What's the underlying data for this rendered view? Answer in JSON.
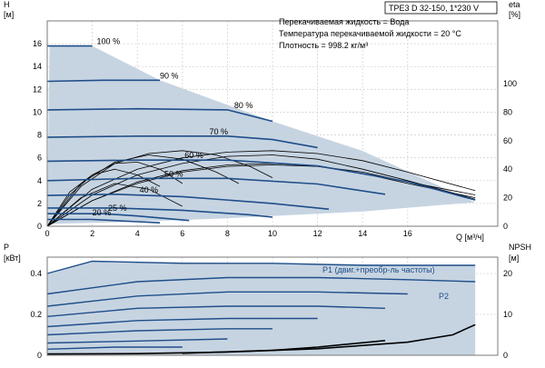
{
  "header": {
    "title": "TPE3 D 32-150, 1*230 V",
    "notes": [
      "Перекачиваемая жидкость = Вода",
      "Температура перекачиваемой жидкости = 20 °C",
      "Плотность = 998.2 кг/м³"
    ]
  },
  "colors": {
    "curve": "#1f4e89",
    "area_fill": "#c6d4e2",
    "eff": "#000000",
    "axis": "#7a7a7a",
    "grid": "#d4d4d4"
  },
  "chart_data": [
    {
      "type": "line",
      "id": "qh",
      "ylabel_lines": [
        "H",
        "[м]"
      ],
      "y2label_lines": [
        "eta",
        "[%]"
      ],
      "xlabel": "Q [м³/ч]",
      "xlim": [
        0,
        20
      ],
      "ylim": [
        0,
        18
      ],
      "xticks": [
        0,
        2,
        4,
        6,
        8,
        10,
        12,
        14,
        16
      ],
      "yticks": [
        0,
        2,
        4,
        6,
        8,
        10,
        12,
        14,
        16
      ],
      "y2lim": [
        0,
        144
      ],
      "y2ticks": [
        0,
        20,
        40,
        60,
        80,
        100
      ],
      "grid": true,
      "speed_labels": [
        {
          "text": "100 %",
          "x": 2.2,
          "y": 15.8
        },
        {
          "text": "90 %",
          "x": 5.0,
          "y": 12.8
        },
        {
          "text": "80 %",
          "x": 8.3,
          "y": 10.2
        },
        {
          "text": "70 %",
          "x": 7.2,
          "y": 7.9
        },
        {
          "text": "60 %",
          "x": 6.1,
          "y": 5.8
        },
        {
          "text": "50 %",
          "x": 5.2,
          "y": 4.2
        },
        {
          "text": "40 %",
          "x": 4.1,
          "y": 2.8
        },
        {
          "text": "25 %",
          "x": 2.7,
          "y": 1.2
        },
        {
          "text": "20 %",
          "x": 2.0,
          "y": 0.8
        }
      ],
      "envelope": [
        [
          0.1,
          15.8
        ],
        [
          2.0,
          15.8
        ],
        [
          5.0,
          12.8
        ],
        [
          10.0,
          9.2
        ],
        [
          14.0,
          6.6
        ],
        [
          19.0,
          2.1
        ],
        [
          14.0,
          1.3
        ],
        [
          8.0,
          0.7
        ],
        [
          4.0,
          0.4
        ],
        [
          0,
          0.2
        ]
      ],
      "series": [
        {
          "points": [
            [
              0,
              15.8
            ],
            [
              2.0,
              15.8
            ]
          ]
        },
        {
          "points": [
            [
              0,
              12.7
            ],
            [
              2.5,
              12.8
            ],
            [
              5.0,
              12.8
            ]
          ]
        },
        {
          "points": [
            [
              0,
              10.2
            ],
            [
              4.0,
              10.3
            ],
            [
              8.0,
              10.2
            ],
            [
              10.0,
              9.2
            ]
          ]
        },
        {
          "points": [
            [
              0,
              7.8
            ],
            [
              4.0,
              7.9
            ],
            [
              8.0,
              7.9
            ],
            [
              10.0,
              7.6
            ],
            [
              12.0,
              6.9
            ]
          ]
        },
        {
          "points": [
            [
              0,
              5.7
            ],
            [
              4.0,
              5.8
            ],
            [
              8.0,
              5.8
            ],
            [
              12.0,
              5.3
            ],
            [
              14.0,
              4.6
            ],
            [
              16.0,
              3.9
            ],
            [
              19.0,
              2.3
            ]
          ]
        },
        {
          "points": [
            [
              0,
              4.0
            ],
            [
              4.0,
              4.2
            ],
            [
              8.0,
              4.2
            ],
            [
              12.0,
              3.7
            ],
            [
              15.0,
              2.8
            ]
          ]
        },
        {
          "points": [
            [
              0,
              2.7
            ],
            [
              3.0,
              2.8
            ],
            [
              6.0,
              2.6
            ],
            [
              10.0,
              2.0
            ],
            [
              12.5,
              1.5
            ]
          ]
        },
        {
          "points": [
            [
              0,
              1.6
            ],
            [
              3.0,
              1.6
            ],
            [
              6.0,
              1.4
            ],
            [
              9.0,
              1.0
            ],
            [
              10.0,
              0.8
            ]
          ]
        },
        {
          "points": [
            [
              0,
              1.1
            ],
            [
              2.5,
              1.1
            ],
            [
              4.0,
              0.9
            ],
            [
              6.3,
              0.5
            ]
          ]
        },
        {
          "points": [
            [
              0,
              0.6
            ],
            [
              2.0,
              0.6
            ],
            [
              4.0,
              0.4
            ],
            [
              5.0,
              0.3
            ]
          ]
        }
      ],
      "efficiency_series": [
        {
          "points": [
            [
              0,
              0
            ],
            [
              2.0,
              18
            ],
            [
              4.0,
              30
            ],
            [
              6.0,
              38
            ],
            [
              8.0,
              42
            ],
            [
              10.0,
              43
            ],
            [
              12.0,
              42
            ],
            [
              14.0,
              38
            ],
            [
              16.0,
              31
            ],
            [
              19.0,
              22
            ]
          ]
        },
        {
          "points": [
            [
              0,
              0
            ],
            [
              2.0,
              18
            ],
            [
              4.0,
              31
            ],
            [
              6.0,
              39
            ],
            [
              8.0,
              43
            ],
            [
              10.0,
              44
            ],
            [
              12.0,
              42
            ],
            [
              14.0,
              37
            ],
            [
              16.0,
              30
            ],
            [
              19.0,
              20
            ]
          ]
        },
        {
          "points": [
            [
              0,
              0
            ],
            [
              2.0,
              22
            ],
            [
              4.0,
              36
            ],
            [
              6.0,
              44
            ],
            [
              8.0,
              49
            ],
            [
              10.0,
              50
            ],
            [
              12.0,
              47
            ],
            [
              14.0,
              40
            ],
            [
              16.0,
              32
            ],
            [
              19.0,
              19
            ]
          ]
        },
        {
          "points": [
            [
              0,
              0
            ],
            [
              2.0,
              26
            ],
            [
              4.0,
              40
            ],
            [
              6.0,
              48
            ],
            [
              8.0,
              52
            ],
            [
              10.0,
              53
            ],
            [
              12.0,
              51
            ],
            [
              14.0,
              46
            ],
            [
              16.0,
              38
            ],
            [
              19.0,
              25
            ]
          ]
        },
        {
          "points": [
            [
              0,
              0
            ],
            [
              1.5,
              28
            ],
            [
              3.0,
              44
            ],
            [
              4.5,
              51
            ],
            [
              6.0,
              53
            ],
            [
              7.5,
              50
            ],
            [
              9.0,
              42
            ],
            [
              10.0,
              34
            ]
          ]
        },
        {
          "points": [
            [
              0,
              0
            ],
            [
              1.5,
              30
            ],
            [
              3.0,
              45
            ],
            [
              4.5,
              50
            ],
            [
              6.0,
              47
            ],
            [
              7.5,
              38
            ],
            [
              8.5,
              30
            ]
          ]
        },
        {
          "points": [
            [
              0,
              0
            ],
            [
              1.0,
              22
            ],
            [
              2.0,
              36
            ],
            [
              3.0,
              44
            ],
            [
              4.0,
              45
            ],
            [
              5.0,
              40
            ],
            [
              6.0,
              30
            ]
          ]
        },
        {
          "points": [
            [
              0,
              0
            ],
            [
              1.0,
              24
            ],
            [
              2.0,
              36
            ],
            [
              3.0,
              40
            ],
            [
              4.0,
              36
            ],
            [
              5.0,
              28
            ]
          ]
        },
        {
          "points": [
            [
              0,
              0
            ],
            [
              1.5,
              20
            ],
            [
              3.0,
              30
            ],
            [
              4.5,
              26
            ],
            [
              6.0,
              14
            ]
          ]
        }
      ]
    },
    {
      "type": "line",
      "id": "power",
      "ylabel_lines": [
        "P",
        "[кВт]"
      ],
      "y2label_lines": [
        "NPSH",
        "[м]"
      ],
      "xlim": [
        0,
        20
      ],
      "ylim": [
        0,
        0.48
      ],
      "yticks": [
        0,
        0.2,
        0.4
      ],
      "y2lim": [
        0,
        24
      ],
      "y2ticks": [
        0,
        10,
        20
      ],
      "grid": true,
      "envelope": [
        [
          0,
          0.4
        ],
        [
          2.0,
          0.46
        ],
        [
          10.0,
          0.45
        ],
        [
          19.0,
          0.44
        ],
        [
          19.0,
          0.0
        ],
        [
          0,
          0.0
        ]
      ],
      "series": [
        {
          "name": "P1 (двиг.+преобр-ль частоты)",
          "points": [
            [
              0,
              0.4
            ],
            [
              2.0,
              0.46
            ],
            [
              6.0,
              0.45
            ],
            [
              10.0,
              0.45
            ],
            [
              14.0,
              0.44
            ],
            [
              19.0,
              0.44
            ]
          ]
        },
        {
          "name": "P2",
          "points": [
            [
              0,
              0.3
            ],
            [
              4.0,
              0.36
            ],
            [
              8.0,
              0.38
            ],
            [
              12.0,
              0.38
            ],
            [
              16.0,
              0.37
            ],
            [
              19.0,
              0.36
            ]
          ]
        },
        {
          "points": [
            [
              0,
              0.24
            ],
            [
              4.0,
              0.29
            ],
            [
              8.0,
              0.31
            ],
            [
              12.0,
              0.31
            ],
            [
              16.0,
              0.3
            ]
          ]
        },
        {
          "points": [
            [
              0,
              0.19
            ],
            [
              4.0,
              0.23
            ],
            [
              8.0,
              0.24
            ],
            [
              12.0,
              0.24
            ],
            [
              15.0,
              0.23
            ]
          ]
        },
        {
          "points": [
            [
              0,
              0.14
            ],
            [
              4.0,
              0.17
            ],
            [
              8.0,
              0.18
            ],
            [
              12.0,
              0.18
            ]
          ]
        },
        {
          "points": [
            [
              0,
              0.1
            ],
            [
              4.0,
              0.12
            ],
            [
              8.0,
              0.13
            ],
            [
              10.0,
              0.13
            ]
          ]
        },
        {
          "points": [
            [
              0,
              0.06
            ],
            [
              4.0,
              0.07
            ],
            [
              8.0,
              0.08
            ]
          ]
        },
        {
          "points": [
            [
              0,
              0.03
            ],
            [
              3.0,
              0.04
            ],
            [
              6.0,
              0.04
            ]
          ]
        }
      ],
      "npsh_series": [
        {
          "points": [
            [
              0,
              0.3
            ],
            [
              4.0,
              0.4
            ],
            [
              8.0,
              0.8
            ],
            [
              12.0,
              1.6
            ],
            [
              16.0,
              3.2
            ],
            [
              18.0,
              5.0
            ],
            [
              19.0,
              7.5
            ]
          ]
        },
        {
          "points": [
            [
              6.0,
              0.5
            ],
            [
              10.0,
              1.2
            ],
            [
              12.0,
              2.0
            ],
            [
              15.0,
              3.6
            ]
          ]
        }
      ]
    }
  ]
}
